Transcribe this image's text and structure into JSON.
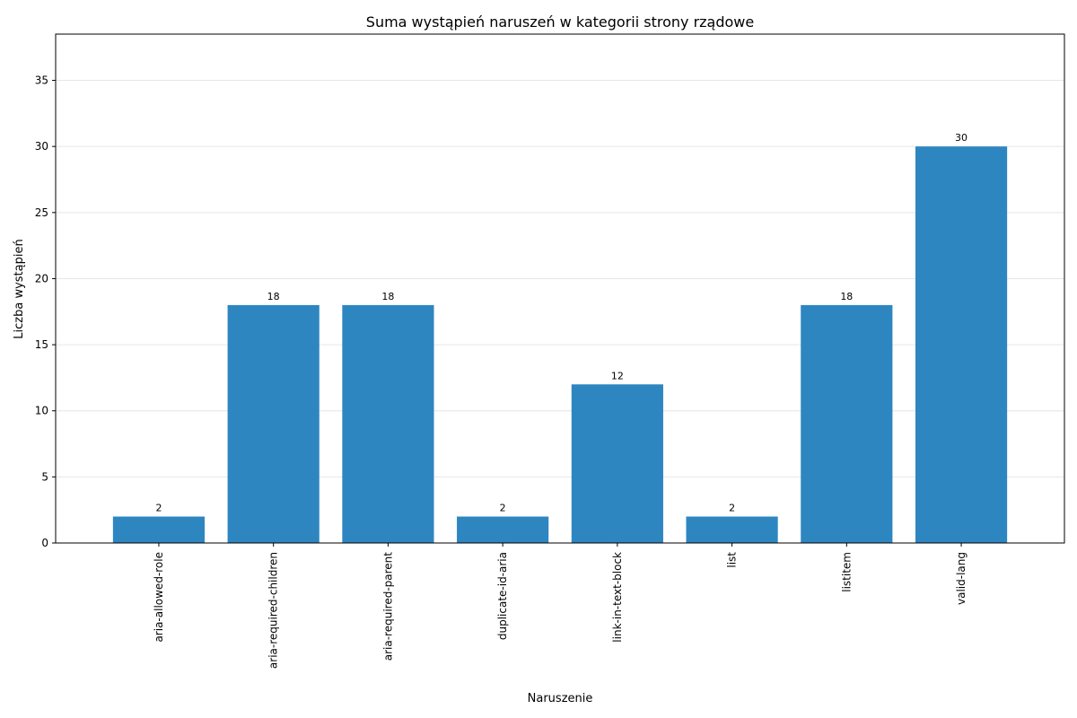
{
  "chart_data": {
    "type": "bar",
    "title": "Suma wystąpień naruszeń w kategorii strony rządowe",
    "xlabel": "Naruszenie",
    "ylabel": "Liczba wystąpień",
    "categories": [
      "aria-allowed-role",
      "aria-required-children",
      "aria-required-parent",
      "duplicate-id-aria",
      "link-in-text-block",
      "list",
      "listitem",
      "valid-lang"
    ],
    "values": [
      2,
      18,
      18,
      2,
      12,
      2,
      18,
      30
    ],
    "data_labels": [
      "2",
      "18",
      "18",
      "2",
      "12",
      "2",
      "18",
      "30"
    ],
    "ylim": [
      0,
      38.5
    ],
    "yticks": [
      0,
      5,
      10,
      15,
      20,
      25,
      30,
      35
    ],
    "ytick_labels": [
      "0",
      "5",
      "10",
      "15",
      "20",
      "25",
      "30",
      "35"
    ],
    "grid": "horizontal",
    "bar_color": "#2e86c1",
    "grid_color": "#e6e6e6",
    "legend": "none"
  }
}
